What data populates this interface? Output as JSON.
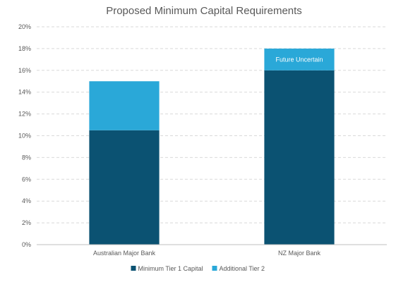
{
  "chart_data": {
    "type": "bar",
    "stacked": true,
    "title": "Proposed Minimum Capital Requirements",
    "categories": [
      "Australian Major Bank",
      "NZ Major Bank"
    ],
    "series": [
      {
        "name": "Minimum Tier 1 Capital",
        "values": [
          10.5,
          16
        ],
        "color": "#0b5272"
      },
      {
        "name": "Additional Tier 2",
        "values": [
          4.5,
          2
        ],
        "color": "#2aa8d8"
      }
    ],
    "y_ticks": [
      "0%",
      "2%",
      "4%",
      "6%",
      "8%",
      "10%",
      "12%",
      "14%",
      "16%",
      "18%",
      "20%"
    ],
    "ylim": [
      0,
      20
    ],
    "grid": true,
    "legend": "bottom",
    "annotations": [
      {
        "category": "NZ Major Bank",
        "series": "Additional Tier 2",
        "text": "Future Uncertain"
      }
    ]
  }
}
